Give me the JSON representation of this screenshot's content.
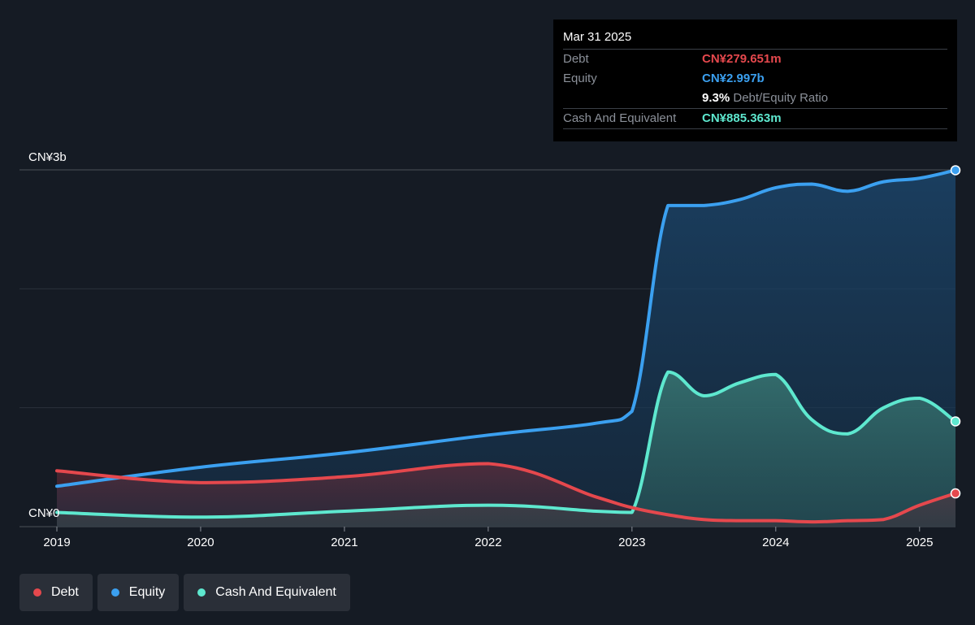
{
  "tooltip": {
    "date": "Mar 31 2025",
    "rows": [
      {
        "label": "Debt",
        "value": "CN¥279.651m",
        "color": "#e5484d"
      },
      {
        "label": "Equity",
        "value": "CN¥2.997b",
        "color": "#3ba0f0"
      },
      {
        "ratio_value": "9.3%",
        "ratio_label": "Debt/Equity Ratio"
      },
      {
        "label": "Cash And Equivalent",
        "value": "CN¥885.363m",
        "color": "#5ee8cf"
      }
    ]
  },
  "legend": [
    {
      "label": "Debt",
      "color": "#e5484d"
    },
    {
      "label": "Equity",
      "color": "#3ba0f0"
    },
    {
      "label": "Cash And Equivalent",
      "color": "#5ee8cf"
    }
  ],
  "chart_data": {
    "type": "area",
    "title": "",
    "xlabel": "",
    "ylabel": "",
    "y_unit": "CN¥ billions",
    "ylim": [
      0,
      3.0
    ],
    "xlim": [
      2019.0,
      2025.25
    ],
    "y_tick_labels": [
      {
        "value": 3.0,
        "label": "CN¥3b"
      },
      {
        "value": 0,
        "label": "CN¥0"
      }
    ],
    "x_ticks": [
      2019,
      2020,
      2021,
      2022,
      2023,
      2024,
      2025
    ],
    "x_tick_labels": [
      "2019",
      "2020",
      "2021",
      "2022",
      "2023",
      "2024",
      "2025"
    ],
    "grid": true,
    "legend_position": "bottom-left",
    "series": [
      {
        "name": "Equity",
        "color": "#3ba0f0",
        "x": [
          2019.0,
          2020.0,
          2021.0,
          2022.0,
          2022.75,
          2023.0,
          2023.25,
          2023.5,
          2023.75,
          2024.0,
          2024.25,
          2024.5,
          2024.75,
          2025.0,
          2025.25
        ],
        "values": [
          0.34,
          0.5,
          0.62,
          0.77,
          0.87,
          0.97,
          2.7,
          2.7,
          2.75,
          2.85,
          2.88,
          2.82,
          2.9,
          2.93,
          2.997
        ]
      },
      {
        "name": "Cash And Equivalent",
        "color": "#5ee8cf",
        "x": [
          2019.0,
          2020.0,
          2021.0,
          2022.0,
          2022.75,
          2023.0,
          2023.25,
          2023.5,
          2023.75,
          2024.0,
          2024.25,
          2024.5,
          2024.75,
          2025.0,
          2025.25
        ],
        "values": [
          0.12,
          0.08,
          0.13,
          0.18,
          0.13,
          0.12,
          1.3,
          1.1,
          1.21,
          1.28,
          0.9,
          0.78,
          1.0,
          1.08,
          0.885
        ]
      },
      {
        "name": "Debt",
        "color": "#e5484d",
        "x": [
          2019.0,
          2020.0,
          2021.0,
          2022.0,
          2022.75,
          2023.0,
          2023.25,
          2023.5,
          2023.75,
          2024.0,
          2024.25,
          2024.5,
          2024.75,
          2025.0,
          2025.25
        ],
        "values": [
          0.47,
          0.37,
          0.42,
          0.53,
          0.25,
          0.16,
          0.1,
          0.06,
          0.05,
          0.05,
          0.04,
          0.05,
          0.06,
          0.18,
          0.28
        ]
      }
    ]
  }
}
